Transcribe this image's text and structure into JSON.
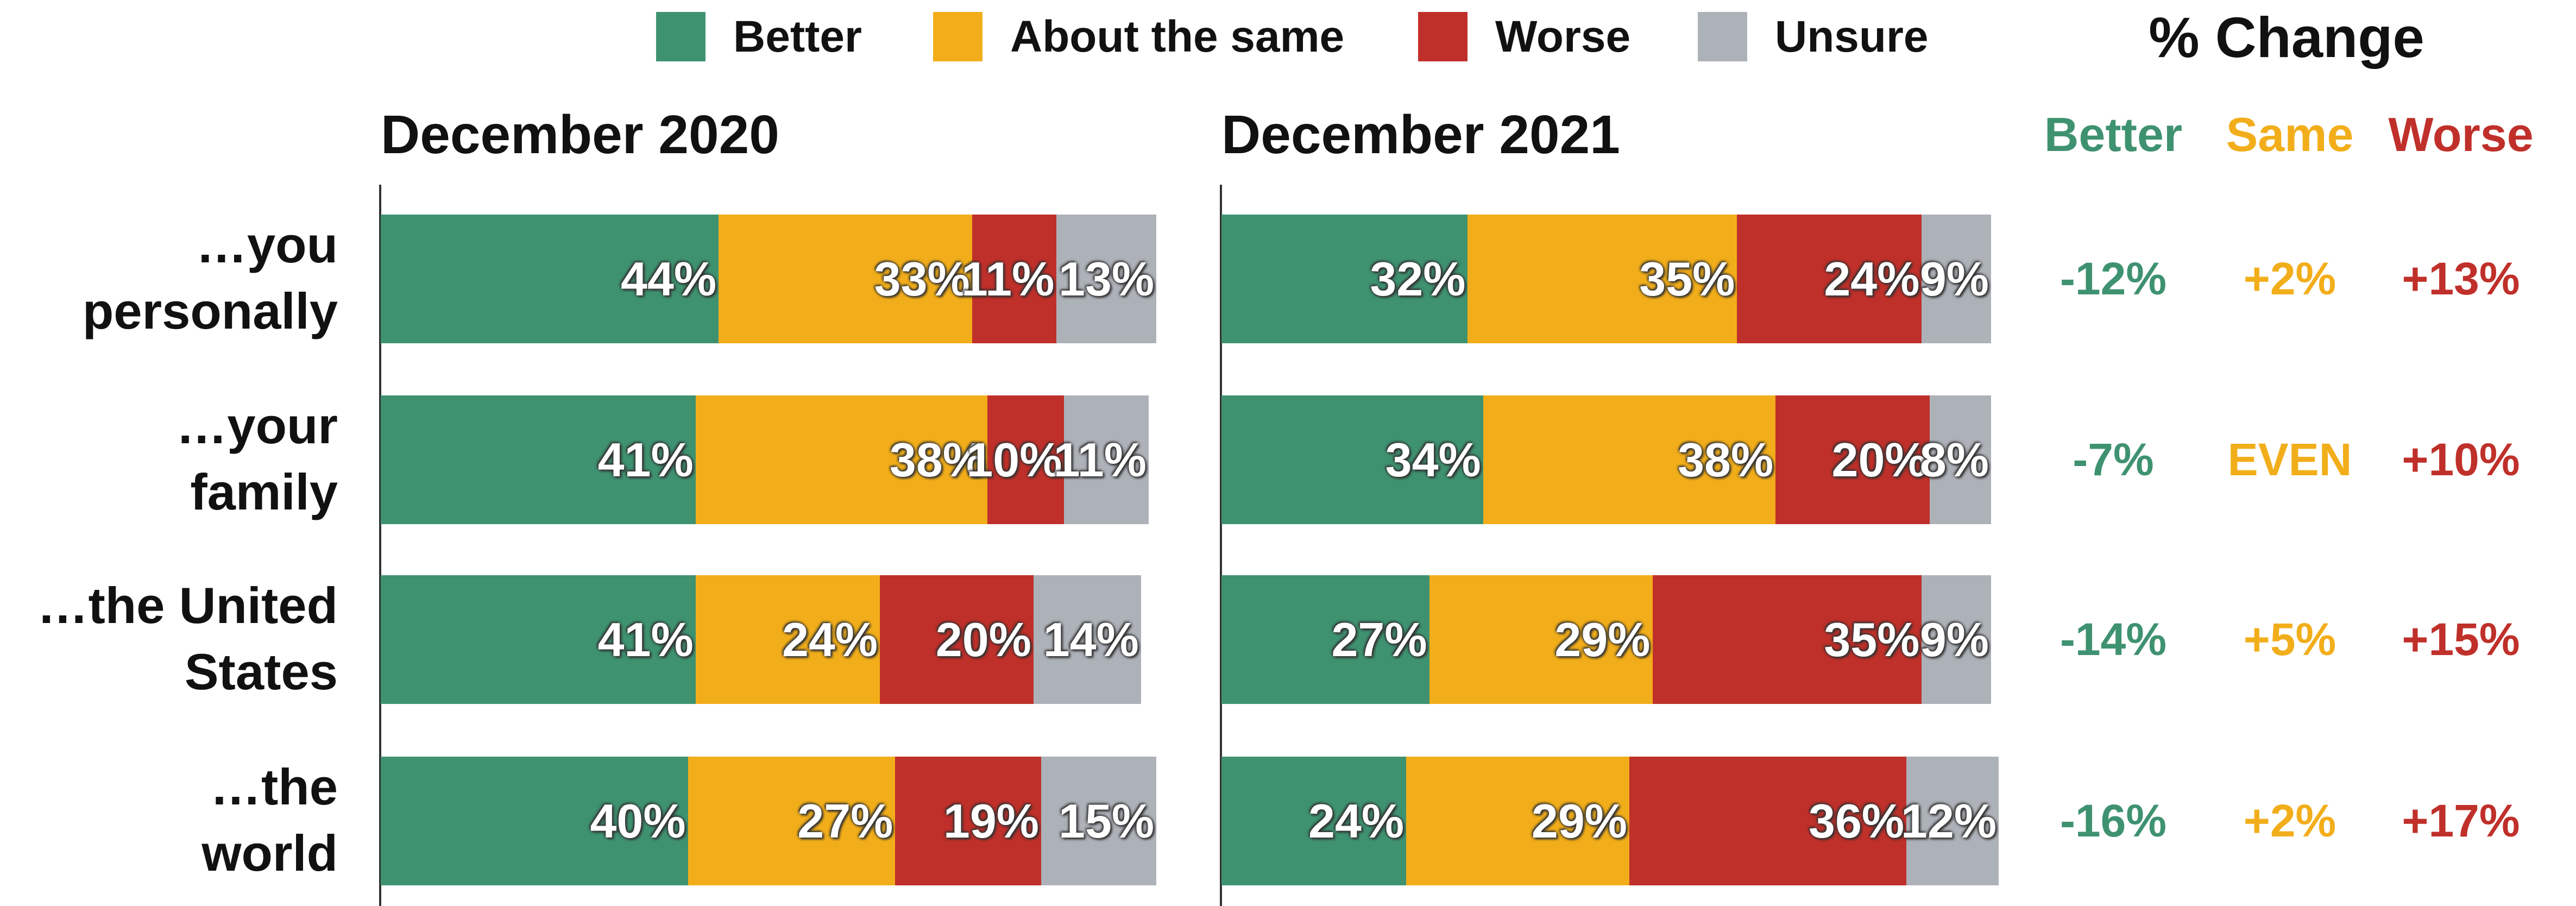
{
  "chart_data": [
    {
      "type": "bar",
      "orientation": "horizontal",
      "stacked": true,
      "title": "December 2020",
      "xlim": [
        0,
        100
      ],
      "categories": [
        "…you\npersonally",
        "…your\nfamily",
        "…the United\nStates",
        "…the\nworld"
      ],
      "series": [
        {
          "name": "Better",
          "color": "#3f9270",
          "values": [
            44,
            41,
            41,
            40
          ],
          "value_labels": [
            "44%",
            "41%",
            "41%",
            "40%"
          ]
        },
        {
          "name": "About the same",
          "color": "#f2ae1a",
          "values": [
            33,
            38,
            24,
            27
          ],
          "value_labels": [
            "33%",
            "38%",
            "24%",
            "27%"
          ]
        },
        {
          "name": "Worse",
          "color": "#c0302a",
          "values": [
            11,
            10,
            20,
            19
          ],
          "value_labels": [
            "11%",
            "10%",
            "20%",
            "19%"
          ]
        },
        {
          "name": "Unsure",
          "color": "#adb1b8",
          "values": [
            13,
            11,
            14,
            15
          ],
          "value_labels": [
            "13%",
            "11%",
            "14%",
            "15%"
          ]
        }
      ]
    },
    {
      "type": "bar",
      "orientation": "horizontal",
      "stacked": true,
      "title": "December 2021",
      "xlim": [
        0,
        100
      ],
      "series": [
        {
          "name": "Better",
          "color": "#3f9270",
          "values": [
            32,
            34,
            27,
            24
          ],
          "value_labels": [
            "32%",
            "34%",
            "27%",
            "24%"
          ]
        },
        {
          "name": "About the same",
          "color": "#f2ae1a",
          "values": [
            35,
            38,
            29,
            29
          ],
          "value_labels": [
            "35%",
            "38%",
            "29%",
            "29%"
          ]
        },
        {
          "name": "Worse",
          "color": "#c0302a",
          "values": [
            24,
            20,
            35,
            36
          ],
          "value_labels": [
            "24%",
            "20%",
            "35%",
            "36%"
          ]
        },
        {
          "name": "Unsure",
          "color": "#adb1b8",
          "values": [
            9,
            8,
            9,
            12
          ],
          "value_labels": [
            "9%",
            "8%",
            "9%",
            "12%"
          ]
        }
      ]
    }
  ],
  "change": {
    "title": "% Change",
    "columns": [
      "Better",
      "Same",
      "Worse"
    ],
    "colors": [
      "#3f9270",
      "#f2ae1a",
      "#c0302a"
    ],
    "rows": [
      [
        "-12%",
        "+2%",
        "+13%"
      ],
      [
        "-7%",
        "EVEN",
        "+10%"
      ],
      [
        "-14%",
        "+5%",
        "+15%"
      ],
      [
        "-16%",
        "+2%",
        "+17%"
      ]
    ]
  }
}
